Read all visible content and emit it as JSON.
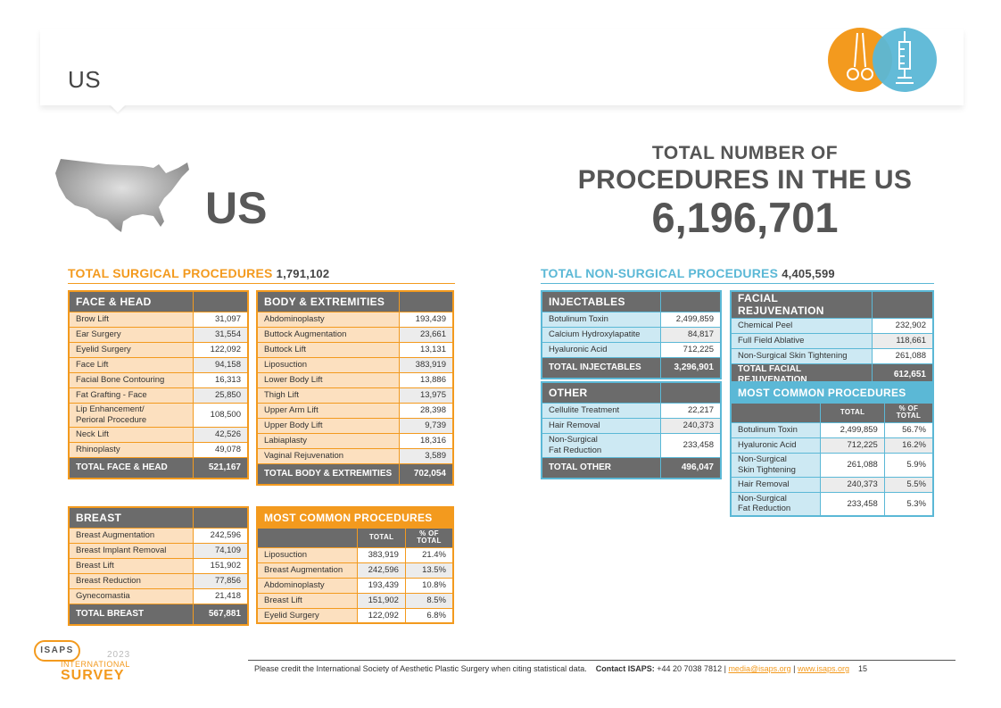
{
  "header": {
    "title": "US"
  },
  "country_label": "US",
  "total_block": {
    "line1": "TOTAL NUMBER OF",
    "line2": "PROCEDURES IN THE US",
    "value": "6,196,701"
  },
  "surgical": {
    "title": "TOTAL SURGICAL PROCEDURES",
    "total": "1,791,102",
    "face_head": {
      "header": "FACE & HEAD",
      "rows": [
        {
          "name": "Brow Lift",
          "value": "31,097"
        },
        {
          "name": "Ear Surgery",
          "value": "31,554"
        },
        {
          "name": "Eyelid Surgery",
          "value": "122,092"
        },
        {
          "name": "Face Lift",
          "value": "94,158"
        },
        {
          "name": "Facial Bone Contouring",
          "value": "16,313"
        },
        {
          "name": "Fat Grafting - Face",
          "value": "25,850"
        },
        {
          "name": "Lip Enhancement/\nPerioral Procedure",
          "value": "108,500"
        },
        {
          "name": "Neck Lift",
          "value": "42,526"
        },
        {
          "name": "Rhinoplasty",
          "value": "49,078"
        }
      ],
      "total_label": "TOTAL FACE & HEAD",
      "total_value": "521,167"
    },
    "body": {
      "header": "BODY & EXTREMITIES",
      "rows": [
        {
          "name": "Abdominoplasty",
          "value": "193,439"
        },
        {
          "name": "Buttock Augmentation",
          "value": "23,661"
        },
        {
          "name": "Buttock Lift",
          "value": "13,131"
        },
        {
          "name": "Liposuction",
          "value": "383,919"
        },
        {
          "name": "Lower Body Lift",
          "value": "13,886"
        },
        {
          "name": "Thigh Lift",
          "value": "13,975"
        },
        {
          "name": "Upper Arm Lift",
          "value": "28,398"
        },
        {
          "name": "Upper Body Lift",
          "value": "9,739"
        },
        {
          "name": "Labiaplasty",
          "value": "18,316"
        },
        {
          "name": "Vaginal Rejuvenation",
          "value": "3,589"
        }
      ],
      "total_label": "TOTAL BODY & EXTREMITIES",
      "total_value": "702,054"
    },
    "breast": {
      "header": "BREAST",
      "rows": [
        {
          "name": "Breast Augmentation",
          "value": "242,596"
        },
        {
          "name": "Breast Implant Removal",
          "value": "74,109"
        },
        {
          "name": "Breast Lift",
          "value": "151,902"
        },
        {
          "name": "Breast Reduction",
          "value": "77,856"
        },
        {
          "name": "Gynecomastia",
          "value": "21,418"
        }
      ],
      "total_label": "TOTAL BREAST",
      "total_value": "567,881"
    },
    "common": {
      "header": "MOST COMMON PROCEDURES",
      "col_total": "TOTAL",
      "col_pct": "% OF\nTOTAL",
      "rows": [
        {
          "name": "Liposuction",
          "total": "383,919",
          "pct": "21.4%"
        },
        {
          "name": "Breast Augmentation",
          "total": "242,596",
          "pct": "13.5%"
        },
        {
          "name": "Abdominoplasty",
          "total": "193,439",
          "pct": "10.8%"
        },
        {
          "name": "Breast Lift",
          "total": "151,902",
          "pct": "8.5%"
        },
        {
          "name": "Eyelid Surgery",
          "total": "122,092",
          "pct": "6.8%"
        }
      ]
    }
  },
  "nonsurgical": {
    "title": "TOTAL NON-SURGICAL PROCEDURES",
    "total": "4,405,599",
    "injectables": {
      "header": "INJECTABLES",
      "rows": [
        {
          "name": "Botulinum Toxin",
          "value": "2,499,859"
        },
        {
          "name": "Calcium Hydroxylapatite",
          "value": "84,817"
        },
        {
          "name": "Hyaluronic Acid",
          "value": "712,225"
        }
      ],
      "total_label": "TOTAL INJECTABLES",
      "total_value": "3,296,901"
    },
    "facial": {
      "header": "FACIAL REJUVENATION",
      "rows": [
        {
          "name": "Chemical Peel",
          "value": "232,902"
        },
        {
          "name": "Full Field Ablative",
          "value": "118,661"
        },
        {
          "name": "Non-Surgical Skin Tightening",
          "value": "261,088"
        }
      ],
      "total_label": "TOTAL FACIAL REJUVENATION",
      "total_value": "612,651"
    },
    "other": {
      "header": "OTHER",
      "rows": [
        {
          "name": "Cellulite Treatment",
          "value": "22,217"
        },
        {
          "name": "Hair Removal",
          "value": "240,373"
        },
        {
          "name": "Non-Surgical\nFat Reduction",
          "value": "233,458"
        }
      ],
      "total_label": "TOTAL OTHER",
      "total_value": "496,047"
    },
    "common": {
      "header": "MOST COMMON PROCEDURES",
      "col_total": "TOTAL",
      "col_pct": "% OF\nTOTAL",
      "rows": [
        {
          "name": "Botulinum Toxin",
          "total": "2,499,859",
          "pct": "56.7%"
        },
        {
          "name": "Hyaluronic Acid",
          "total": "712,225",
          "pct": "16.2%"
        },
        {
          "name": "Non-Surgical\nSkin Tightening",
          "total": "261,088",
          "pct": "5.9%"
        },
        {
          "name": "Hair Removal",
          "total": "240,373",
          "pct": "5.5%"
        },
        {
          "name": "Non-Surgical\nFat Reduction",
          "total": "233,458",
          "pct": "5.3%"
        }
      ]
    }
  },
  "footer": {
    "credit": "Please credit the International Society of Aesthetic Plastic Surgery when citing statistical data.",
    "contact_label": "Contact ISAPS:",
    "phone": "+44 20 7038 7812 |",
    "email": "media@isaps.org",
    "sep": "|",
    "website": "www.isaps.org",
    "page": "15"
  },
  "logo": {
    "name": "ISAPS",
    "year": "2023",
    "line1": "INTERNATIONAL",
    "line2": "SURVEY"
  },
  "colors": {
    "orange": "#f39a1e",
    "blue": "#5bb8d6",
    "gray": "#6b6b6b"
  }
}
